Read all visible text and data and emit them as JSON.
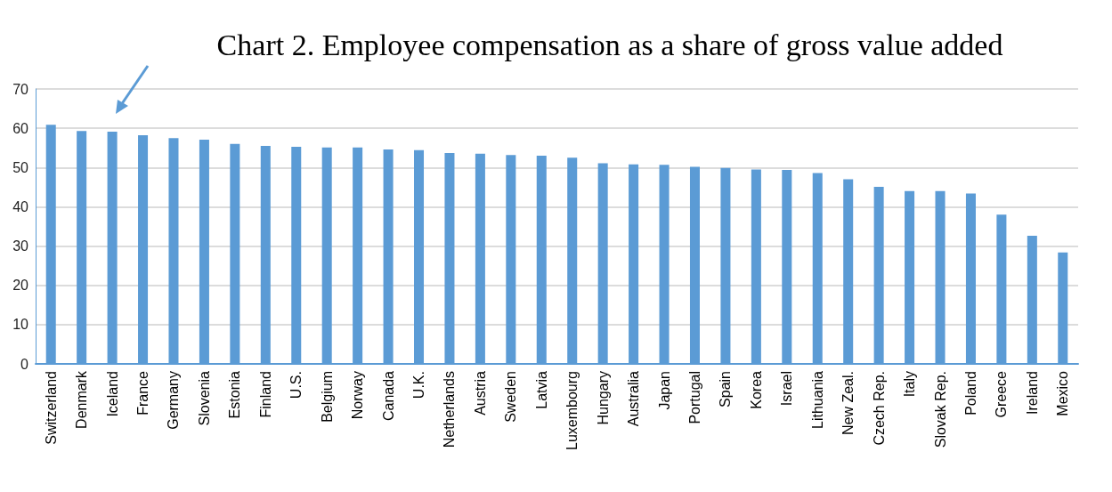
{
  "chart_data": {
    "type": "bar",
    "title": "Chart 2. Employee compensation as a share of gross value added",
    "categories": [
      "Switzerland",
      "Denmark",
      "Iceland",
      "France",
      "Germany",
      "Slovenia",
      "Estonia",
      "Finland",
      "U.S.",
      "Belgium",
      "Norway",
      "Canada",
      "U.K.",
      "Netherlands",
      "Austria",
      "Sweden",
      "Latvia",
      "Luxembourg",
      "Hungary",
      "Australia",
      "Japan",
      "Portugal",
      "Spain",
      "Korea",
      "Israel",
      "Lithuania",
      "New Zeal.",
      "Czech Rep.",
      "Italy",
      "Slovak Rep.",
      "Poland",
      "Greece",
      "Ireland",
      "Mexico"
    ],
    "values": [
      60.9,
      59.3,
      59.1,
      58.2,
      57.5,
      57.1,
      56.0,
      55.5,
      55.3,
      55.1,
      55.1,
      54.6,
      54.4,
      53.7,
      53.5,
      53.2,
      53.0,
      52.5,
      51.1,
      50.8,
      50.7,
      50.2,
      49.9,
      49.5,
      49.4,
      48.6,
      47.0,
      45.1,
      44.0,
      44.0,
      43.4,
      38.0,
      32.6,
      28.4
    ],
    "color": "#5b9bd5",
    "ylim": [
      0,
      70
    ],
    "yticks": [
      0,
      10,
      20,
      30,
      40,
      50,
      60,
      70
    ],
    "grid": "y"
  }
}
